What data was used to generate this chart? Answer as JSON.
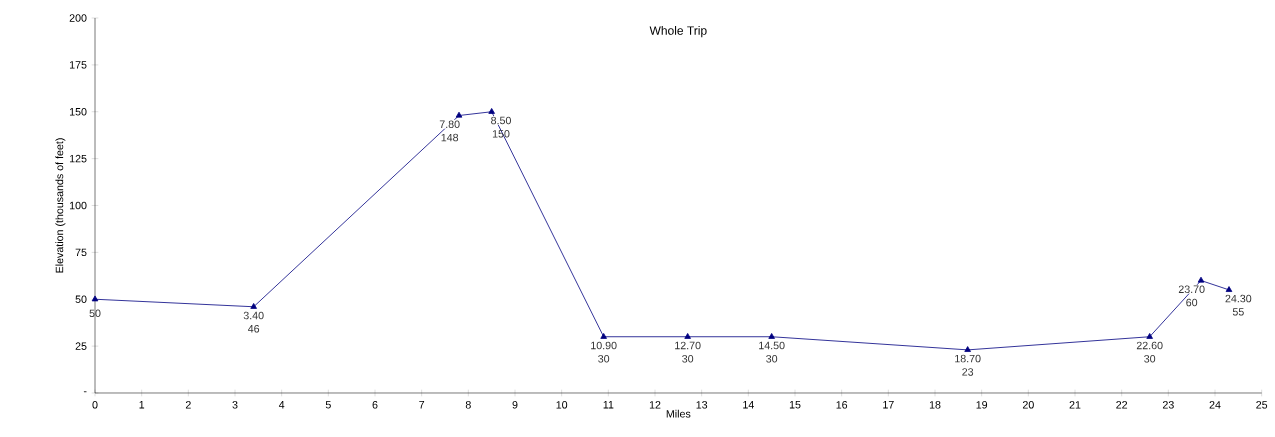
{
  "chart_data": {
    "type": "line",
    "title": "Whole Trip",
    "xlabel": "Miles",
    "ylabel": "Elevation  (thousands of feet)",
    "x": [
      0,
      3.4,
      7.8,
      8.5,
      10.9,
      12.7,
      14.5,
      18.7,
      22.6,
      23.7,
      24.3
    ],
    "values": [
      50,
      46,
      148,
      150,
      30,
      30,
      30,
      23,
      30,
      60,
      55
    ],
    "data_labels": true,
    "annotations": [
      {
        "text": "3.40",
        "x": 3.4,
        "y": 46
      },
      {
        "text": "7.80",
        "x": 7.8,
        "y": 148
      },
      {
        "text": "8.50",
        "x": 8.5,
        "y": 150
      },
      {
        "text": "10.90",
        "x": 10.9,
        "y": 30
      },
      {
        "text": "12.70",
        "x": 12.7,
        "y": 30
      },
      {
        "text": "14.50",
        "x": 14.5,
        "y": 30
      },
      {
        "text": "18.70",
        "x": 18.7,
        "y": 23
      },
      {
        "text": "22.60",
        "x": 22.6,
        "y": 30
      },
      {
        "text": "23.70",
        "x": 23.7,
        "y": 60
      },
      {
        "text": "24.30",
        "x": 24.3,
        "y": 55
      }
    ],
    "color": "#000080",
    "marker": "triangle",
    "line_style": "solid",
    "grid": false,
    "legend": false,
    "xlim": [
      0,
      25
    ],
    "xticks": [
      0,
      1,
      2,
      3,
      4,
      5,
      6,
      7,
      8,
      9,
      10,
      11,
      12,
      13,
      14,
      15,
      16,
      17,
      18,
      19,
      20,
      21,
      22,
      23,
      24,
      25
    ],
    "ylim": [
      0,
      200
    ],
    "yticks": [
      {
        "value": 0,
        "label": "-"
      },
      25,
      50,
      75,
      100,
      125,
      150,
      175,
      200
    ]
  }
}
